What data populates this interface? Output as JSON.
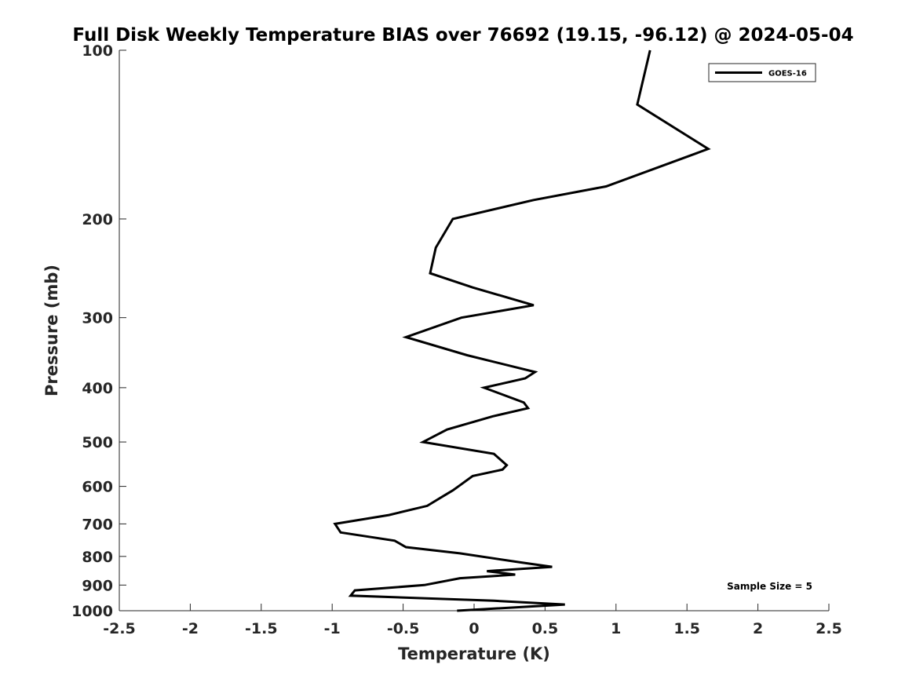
{
  "chart_data": {
    "type": "line",
    "title": "Full Disk Weekly Temperature BIAS over 76692 (19.15, -96.12) @ 2024-05-04",
    "xlabel": "Temperature (K)",
    "ylabel": "Pressure (mb)",
    "xlim": [
      -2.5,
      2.5
    ],
    "ylim": [
      1000,
      100
    ],
    "y_axis_direction": "reversed",
    "y_scale": "log",
    "grid": false,
    "legend_position": "top-right",
    "xticks": [
      -2.5,
      -2,
      -1.5,
      -1,
      -0.5,
      0,
      0.5,
      1,
      1.5,
      2,
      2.5
    ],
    "xtick_labels": [
      "-2.5",
      "-2",
      "-1.5",
      "-1",
      "-0.5",
      "0",
      "0.5",
      "1",
      "1.5",
      "2",
      "2.5"
    ],
    "yticks": [
      100,
      200,
      300,
      400,
      500,
      600,
      700,
      800,
      900,
      1000
    ],
    "ytick_labels": [
      "100",
      "200",
      "300",
      "400",
      "500",
      "600",
      "700",
      "800",
      "900",
      "1000"
    ],
    "annotations": [
      {
        "text": "Sample Size = 5"
      }
    ],
    "series": [
      {
        "name": "GOES-16",
        "color": "#000000",
        "points": [
          {
            "x": 1.24,
            "y": 100
          },
          {
            "x": 1.15,
            "y": 125
          },
          {
            "x": 1.65,
            "y": 150
          },
          {
            "x": 0.93,
            "y": 175
          },
          {
            "x": 0.42,
            "y": 185
          },
          {
            "x": -0.15,
            "y": 200
          },
          {
            "x": -0.27,
            "y": 225
          },
          {
            "x": -0.31,
            "y": 250
          },
          {
            "x": -0.01,
            "y": 265
          },
          {
            "x": 0.42,
            "y": 285
          },
          {
            "x": -0.09,
            "y": 300
          },
          {
            "x": -0.48,
            "y": 325
          },
          {
            "x": -0.05,
            "y": 350
          },
          {
            "x": 0.43,
            "y": 375
          },
          {
            "x": 0.36,
            "y": 385
          },
          {
            "x": 0.07,
            "y": 400
          },
          {
            "x": 0.35,
            "y": 425
          },
          {
            "x": 0.38,
            "y": 435
          },
          {
            "x": 0.13,
            "y": 450
          },
          {
            "x": -0.19,
            "y": 475
          },
          {
            "x": -0.36,
            "y": 500
          },
          {
            "x": 0.14,
            "y": 525
          },
          {
            "x": 0.23,
            "y": 550
          },
          {
            "x": 0.2,
            "y": 560
          },
          {
            "x": -0.01,
            "y": 575
          },
          {
            "x": -0.11,
            "y": 600
          },
          {
            "x": -0.15,
            "y": 610
          },
          {
            "x": -0.22,
            "y": 625
          },
          {
            "x": -0.33,
            "y": 650
          },
          {
            "x": -0.6,
            "y": 675
          },
          {
            "x": -0.98,
            "y": 700
          },
          {
            "x": -0.94,
            "y": 725
          },
          {
            "x": -0.56,
            "y": 750
          },
          {
            "x": -0.48,
            "y": 770
          },
          {
            "x": -0.1,
            "y": 790
          },
          {
            "x": 0.33,
            "y": 820
          },
          {
            "x": 0.55,
            "y": 835
          },
          {
            "x": 0.09,
            "y": 850
          },
          {
            "x": 0.29,
            "y": 862
          },
          {
            "x": -0.1,
            "y": 875
          },
          {
            "x": -0.35,
            "y": 900
          },
          {
            "x": -0.84,
            "y": 920
          },
          {
            "x": -0.87,
            "y": 940
          },
          {
            "x": 0.14,
            "y": 960
          },
          {
            "x": 0.64,
            "y": 975
          },
          {
            "x": -0.12,
            "y": 1000
          }
        ]
      }
    ]
  }
}
